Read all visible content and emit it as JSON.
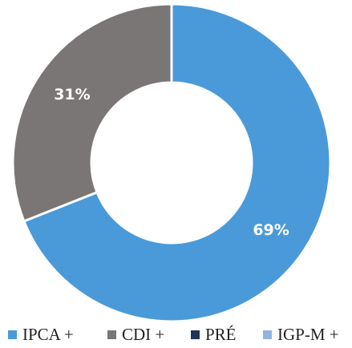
{
  "chart_data": {
    "type": "donut",
    "categories": [
      "IPCA +",
      "CDI +",
      "PRÉ",
      "IGP-M +"
    ],
    "values": [
      69,
      31,
      0,
      0
    ],
    "value_labels": [
      "69%",
      "31%",
      null,
      null
    ],
    "colors": [
      "#4a9ad9",
      "#7a7675",
      "#1f3556",
      "#8fb5dd"
    ],
    "legend": "bottom"
  }
}
